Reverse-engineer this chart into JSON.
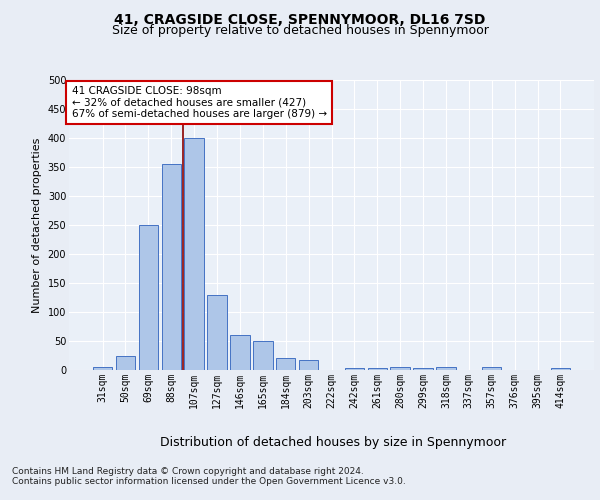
{
  "title": "41, CRAGSIDE CLOSE, SPENNYMOOR, DL16 7SD",
  "subtitle": "Size of property relative to detached houses in Spennymoor",
  "xlabel": "Distribution of detached houses by size in Spennymoor",
  "ylabel": "Number of detached properties",
  "categories": [
    "31sqm",
    "50sqm",
    "69sqm",
    "88sqm",
    "107sqm",
    "127sqm",
    "146sqm",
    "165sqm",
    "184sqm",
    "203sqm",
    "222sqm",
    "242sqm",
    "261sqm",
    "280sqm",
    "299sqm",
    "318sqm",
    "337sqm",
    "357sqm",
    "376sqm",
    "395sqm",
    "414sqm"
  ],
  "values": [
    5,
    25,
    250,
    355,
    400,
    130,
    60,
    50,
    20,
    17,
    0,
    3,
    3,
    5,
    3,
    5,
    0,
    5,
    0,
    0,
    3
  ],
  "bar_color": "#aec6e8",
  "bar_edge_color": "#4472c4",
  "vline_color": "#8b0000",
  "annotation_text": "41 CRAGSIDE CLOSE: 98sqm\n← 32% of detached houses are smaller (427)\n67% of semi-detached houses are larger (879) →",
  "annotation_box_color": "#ffffff",
  "annotation_box_edge_color": "#cc0000",
  "ylim": [
    0,
    500
  ],
  "yticks": [
    0,
    50,
    100,
    150,
    200,
    250,
    300,
    350,
    400,
    450,
    500
  ],
  "bg_color": "#e8edf5",
  "plot_bg_color": "#eaf0f8",
  "footer_line1": "Contains HM Land Registry data © Crown copyright and database right 2024.",
  "footer_line2": "Contains public sector information licensed under the Open Government Licence v3.0.",
  "title_fontsize": 10,
  "subtitle_fontsize": 9,
  "xlabel_fontsize": 9,
  "ylabel_fontsize": 8,
  "tick_fontsize": 7,
  "footer_fontsize": 6.5,
  "vline_x_index": 3
}
